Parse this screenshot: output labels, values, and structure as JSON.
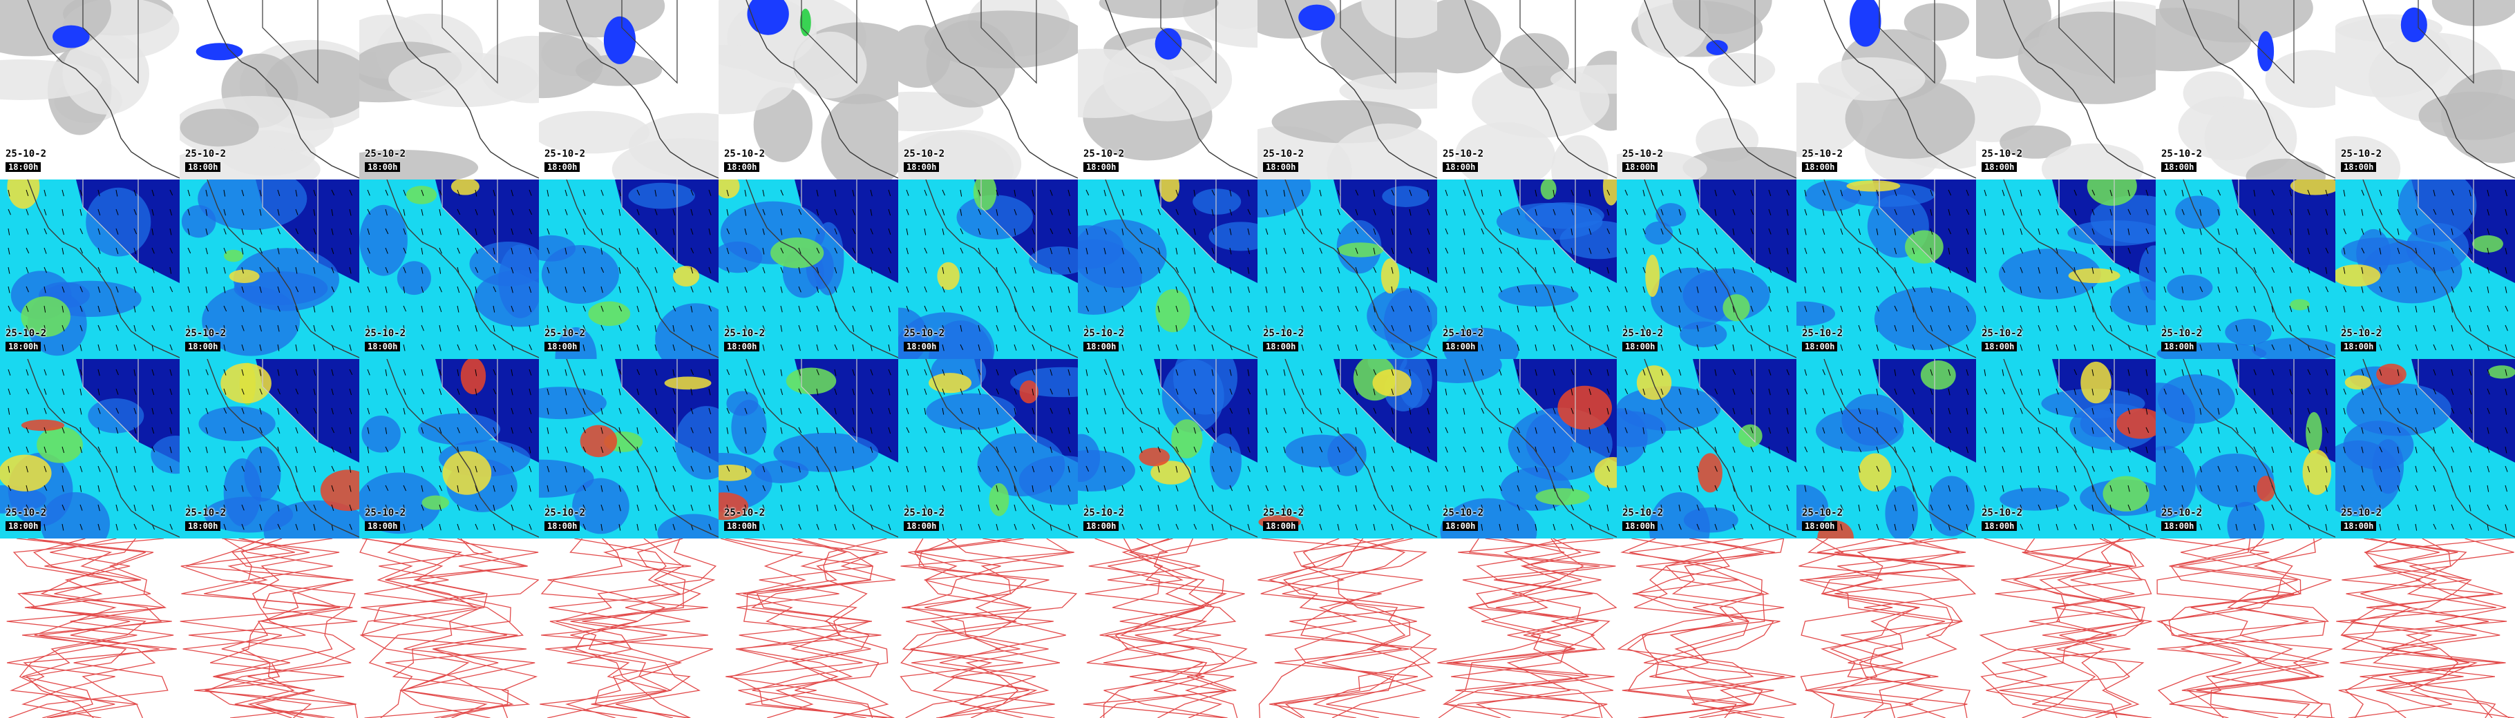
{
  "stamp_date": "25-10-2",
  "stamp_sub": "18:00h",
  "rows": [
    {
      "name": "cloud-precip-row",
      "kind": "cloud"
    },
    {
      "name": "wind-speed-row-1",
      "kind": "wind1"
    },
    {
      "name": "wind-speed-row-2",
      "kind": "wind2"
    },
    {
      "name": "pressure-contour-row",
      "kind": "contour"
    }
  ],
  "columns": 14,
  "palette": {
    "cloud_gray": "#bdbdbd",
    "cloud_light": "#e6e6e6",
    "precip_blue": "#1a3cff",
    "precip_green": "#39d353",
    "wind_navy": "#0a1aa8",
    "wind_blue": "#1e6fe6",
    "wind_cyan": "#19d8f0",
    "wind_green": "#6ee35a",
    "wind_yellow": "#f2e23a",
    "wind_red": "#e8452a",
    "contour_red": "#e24a4a",
    "border": "#3a3a3a"
  }
}
